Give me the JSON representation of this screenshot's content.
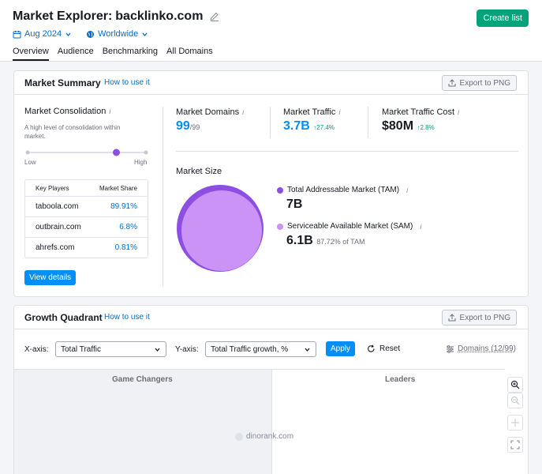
{
  "header": {
    "title": "Market Explorer:",
    "domain": "backlinko.com",
    "create_list": "Create list",
    "date_filter": "Aug 2024",
    "region_filter": "Worldwide",
    "tabs": [
      "Overview",
      "Audience",
      "Benchmarking",
      "All Domains"
    ],
    "active_tab": "Overview"
  },
  "market_summary": {
    "title": "Market Summary",
    "how_to": "How to use it",
    "export": "Export to PNG",
    "consolidation": {
      "title": "Market Consolidation",
      "description": "A high level of consolidation within market.",
      "low": "Low",
      "high": "High",
      "level": 0.75
    },
    "key_players": {
      "col1": "Key Players",
      "col2": "Market Share",
      "rows": [
        {
          "domain": "taboola.com",
          "share": "89.91%"
        },
        {
          "domain": "outbrain.com",
          "share": "6.8%"
        },
        {
          "domain": "ahrefs.com",
          "share": "0.81%"
        }
      ]
    },
    "view_details": "View details",
    "domains": {
      "label": "Market Domains",
      "value": "99",
      "total": "/99"
    },
    "traffic": {
      "label": "Market Traffic",
      "value": "3.7B",
      "change": "27.4%"
    },
    "traffic_cost": {
      "label": "Market Traffic Cost",
      "value": "$80M",
      "change": "2.8%"
    },
    "market_size": {
      "title": "Market Size",
      "tam_label": "Total Addressable Market (TAM)",
      "tam_value": "7B",
      "sam_label": "Serviceable Available Market (SAM)",
      "sam_value": "6.1B",
      "sam_pct": "87.72% of TAM",
      "tam_color": "#8d4ee3",
      "sam_color": "#cb93f5"
    }
  },
  "growth_quadrant": {
    "title": "Growth Quadrant",
    "how_to": "How to use it",
    "export": "Export to PNG",
    "x_label": "X-axis:",
    "x_value": "Total Traffic",
    "y_label": "Y-axis:",
    "y_value": "Total Traffic growth, %",
    "apply": "Apply",
    "reset": "Reset",
    "domains": "Domains (12/99)",
    "q_left": "Game Changers",
    "q_right": "Leaders",
    "point_label": "dinorank.com"
  }
}
